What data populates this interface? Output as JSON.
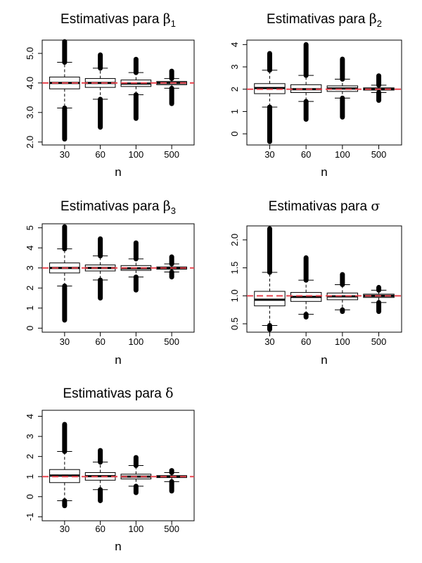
{
  "chart_data": [
    {
      "type": "box",
      "title": "Estimativas para",
      "title_symbol": "β",
      "title_subscript": "1",
      "xlabel": "n",
      "ylabel": "",
      "categories": [
        "30",
        "60",
        "100",
        "500"
      ],
      "ylim": [
        1.9,
        5.45
      ],
      "yticks": [
        2.0,
        3.0,
        4.0,
        5.0
      ],
      "ytick_labels": [
        "2.0",
        "3.0",
        "4.0",
        "5.0"
      ],
      "reference_line": 4.0,
      "reference_color": "#e8454f",
      "boxes": [
        {
          "category": "30",
          "whisker_low": 3.15,
          "q1": 3.8,
          "median": 4.0,
          "q3": 4.2,
          "whisker_high": 4.7,
          "outliers_low": [
            2.1,
            3.15
          ],
          "outliers_high": [
            4.7,
            5.4
          ]
        },
        {
          "category": "60",
          "whisker_low": 3.45,
          "q1": 3.85,
          "median": 4.0,
          "q3": 4.15,
          "whisker_high": 4.5,
          "outliers_low": [
            2.5,
            3.45
          ],
          "outliers_high": [
            4.5,
            4.95
          ]
        },
        {
          "category": "100",
          "whisker_low": 3.6,
          "q1": 3.88,
          "median": 3.98,
          "q3": 4.1,
          "whisker_high": 4.35,
          "outliers_low": [
            2.8,
            3.6
          ],
          "outliers_high": [
            4.35,
            4.8
          ]
        },
        {
          "category": "500",
          "whisker_low": 3.82,
          "q1": 3.94,
          "median": 4.0,
          "q3": 4.05,
          "whisker_high": 4.15,
          "outliers_low": [
            3.3,
            3.82
          ],
          "outliers_high": [
            4.15,
            4.4
          ]
        }
      ]
    },
    {
      "type": "box",
      "title": "Estimativas para",
      "title_symbol": "β",
      "title_subscript": "2",
      "xlabel": "n",
      "ylabel": "",
      "categories": [
        "30",
        "60",
        "100",
        "500"
      ],
      "ylim": [
        -0.5,
        4.2
      ],
      "yticks": [
        0,
        1,
        2,
        3,
        4
      ],
      "ytick_labels": [
        "0",
        "1",
        "2",
        "3",
        "4"
      ],
      "reference_line": 2.0,
      "reference_color": "#e8454f",
      "boxes": [
        {
          "category": "30",
          "whisker_low": 1.2,
          "q1": 1.8,
          "median": 2.05,
          "q3": 2.25,
          "whisker_high": 2.85,
          "outliers_low": [
            -0.35,
            1.2
          ],
          "outliers_high": [
            2.85,
            3.6
          ]
        },
        {
          "category": "60",
          "whisker_low": 1.45,
          "q1": 1.85,
          "median": 2.0,
          "q3": 2.2,
          "whisker_high": 2.62,
          "outliers_low": [
            0.65,
            1.45
          ],
          "outliers_high": [
            2.62,
            4.0
          ]
        },
        {
          "category": "100",
          "whisker_low": 1.6,
          "q1": 1.9,
          "median": 2.03,
          "q3": 2.15,
          "whisker_high": 2.45,
          "outliers_low": [
            0.75,
            1.6
          ],
          "outliers_high": [
            2.45,
            3.35
          ]
        },
        {
          "category": "500",
          "whisker_low": 1.85,
          "q1": 1.96,
          "median": 2.0,
          "q3": 2.06,
          "whisker_high": 2.18,
          "outliers_low": [
            1.5,
            1.85
          ],
          "outliers_high": [
            2.18,
            2.6
          ]
        }
      ]
    },
    {
      "type": "box",
      "title": "Estimativas para",
      "title_symbol": "β",
      "title_subscript": "3",
      "xlabel": "n",
      "ylabel": "",
      "categories": [
        "30",
        "60",
        "100",
        "500"
      ],
      "ylim": [
        -0.2,
        5.2
      ],
      "yticks": [
        0,
        1,
        2,
        3,
        4,
        5
      ],
      "ytick_labels": [
        "0",
        "1",
        "2",
        "3",
        "4",
        "5"
      ],
      "reference_line": 3.0,
      "reference_color": "#e8454f",
      "boxes": [
        {
          "category": "30",
          "whisker_low": 2.1,
          "q1": 2.75,
          "median": 3.0,
          "q3": 3.25,
          "whisker_high": 3.95,
          "outliers_low": [
            0.4,
            2.1
          ],
          "outliers_high": [
            3.95,
            5.05
          ]
        },
        {
          "category": "60",
          "whisker_low": 2.4,
          "q1": 2.85,
          "median": 3.0,
          "q3": 3.15,
          "whisker_high": 3.6,
          "outliers_low": [
            1.5,
            2.4
          ],
          "outliers_high": [
            3.6,
            4.45
          ]
        },
        {
          "category": "100",
          "whisker_low": 2.55,
          "q1": 2.88,
          "median": 2.98,
          "q3": 3.12,
          "whisker_high": 3.45,
          "outliers_low": [
            1.9,
            2.55
          ],
          "outliers_high": [
            3.45,
            4.25
          ]
        },
        {
          "category": "500",
          "whisker_low": 2.8,
          "q1": 2.94,
          "median": 3.0,
          "q3": 3.05,
          "whisker_high": 3.2,
          "outliers_low": [
            2.55,
            2.8
          ],
          "outliers_high": [
            3.2,
            3.55
          ]
        }
      ]
    },
    {
      "type": "box",
      "title": "Estimativas para",
      "title_symbol": "σ",
      "title_subscript": "",
      "xlabel": "n",
      "ylabel": "",
      "categories": [
        "30",
        "60",
        "100",
        "500"
      ],
      "ylim": [
        0.35,
        2.25
      ],
      "yticks": [
        0.5,
        1.0,
        1.5,
        2.0
      ],
      "ytick_labels": [
        "0.5",
        "1.0",
        "1.5",
        "2.0"
      ],
      "reference_line": 1.0,
      "reference_color": "#e8454f",
      "boxes": [
        {
          "category": "30",
          "whisker_low": 0.47,
          "q1": 0.82,
          "median": 0.93,
          "q3": 1.08,
          "whisker_high": 1.42,
          "outliers_low": [
            0.4,
            0.47
          ],
          "outliers_high": [
            1.42,
            1.92,
            2.2
          ]
        },
        {
          "category": "60",
          "whisker_low": 0.67,
          "q1": 0.9,
          "median": 0.98,
          "q3": 1.06,
          "whisker_high": 1.28,
          "outliers_low": [
            0.62,
            0.67
          ],
          "outliers_high": [
            1.28,
            1.68
          ]
        },
        {
          "category": "100",
          "whisker_low": 0.75,
          "q1": 0.93,
          "median": 0.99,
          "q3": 1.05,
          "whisker_high": 1.2,
          "outliers_low": [
            0.72,
            0.75
          ],
          "outliers_high": [
            1.2,
            1.38
          ]
        },
        {
          "category": "500",
          "whisker_low": 0.88,
          "q1": 0.97,
          "median": 1.0,
          "q3": 1.03,
          "whisker_high": 1.1,
          "outliers_low": [
            0.72,
            0.88
          ],
          "outliers_high": [
            1.1,
            1.15
          ]
        }
      ]
    },
    {
      "type": "box",
      "title": "Estimativas para",
      "title_symbol": "δ",
      "title_subscript": "",
      "xlabel": "n",
      "ylabel": "",
      "categories": [
        "30",
        "60",
        "100",
        "500"
      ],
      "ylim": [
        -1.2,
        4.3
      ],
      "yticks": [
        -1,
        0,
        1,
        2,
        3,
        4
      ],
      "ytick_labels": [
        "-1",
        "0",
        "1",
        "2",
        "3",
        "4"
      ],
      "reference_line": 1.0,
      "reference_color": "#e8454f",
      "boxes": [
        {
          "category": "30",
          "whisker_low": -0.2,
          "q1": 0.7,
          "median": 1.05,
          "q3": 1.35,
          "whisker_high": 2.25,
          "outliers_low": [
            -0.45,
            -0.2
          ],
          "outliers_high": [
            2.25,
            3.6
          ]
        },
        {
          "category": "60",
          "whisker_low": 0.35,
          "q1": 0.82,
          "median": 1.02,
          "q3": 1.2,
          "whisker_high": 1.72,
          "outliers_low": [
            -0.2,
            0.35
          ],
          "outliers_high": [
            1.72,
            2.3
          ]
        },
        {
          "category": "100",
          "whisker_low": 0.52,
          "q1": 0.88,
          "median": 1.0,
          "q3": 1.12,
          "whisker_high": 1.55,
          "outliers_low": [
            0.2,
            0.52
          ],
          "outliers_high": [
            1.55,
            1.95
          ]
        },
        {
          "category": "500",
          "whisker_low": 0.75,
          "q1": 0.95,
          "median": 1.0,
          "q3": 1.05,
          "whisker_high": 1.2,
          "outliers_low": [
            0.28,
            0.75
          ],
          "outliers_high": [
            1.2,
            1.3
          ]
        }
      ]
    }
  ]
}
